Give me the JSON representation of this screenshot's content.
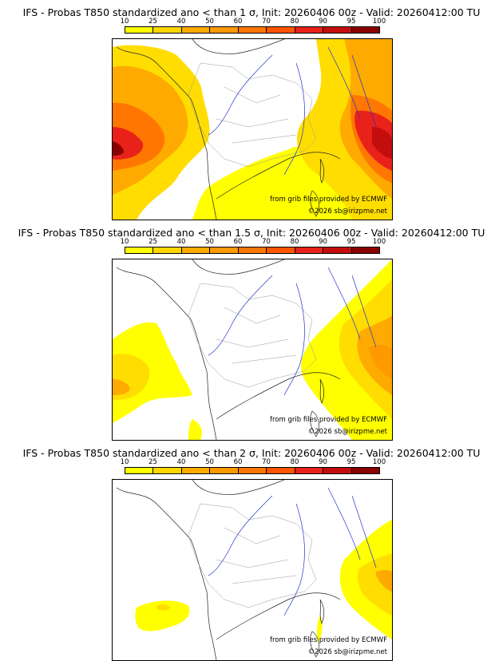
{
  "panels": [
    {
      "title": "IFS - Probas T850  standardized ano < than 1 σ, Init: 20260406 00z - Valid: 20260412:00 TU"
    },
    {
      "title": "IFS - Probas T850  standardized ano < than 1.5 σ, Init: 20260406 00z - Valid: 20260412:00 TU"
    },
    {
      "title": "IFS - Probas T850  standardized ano < than 2 σ, Init: 20260406 00z - Valid: 20260412:00 TU"
    }
  ],
  "legend": {
    "ticks": [
      "10",
      "25",
      "40",
      "50",
      "60",
      "70",
      "80",
      "90",
      "95",
      "100"
    ],
    "colors": [
      "#ffff00",
      "#ffd700",
      "#ffaa00",
      "#ff9900",
      "#ff7700",
      "#ff5500",
      "#e8221b",
      "#c40d0d",
      "#8b0000"
    ]
  },
  "credits": {
    "source": "from grib files provided by ECMWF",
    "copyright": "©2026 sb@irizpme.net"
  }
}
